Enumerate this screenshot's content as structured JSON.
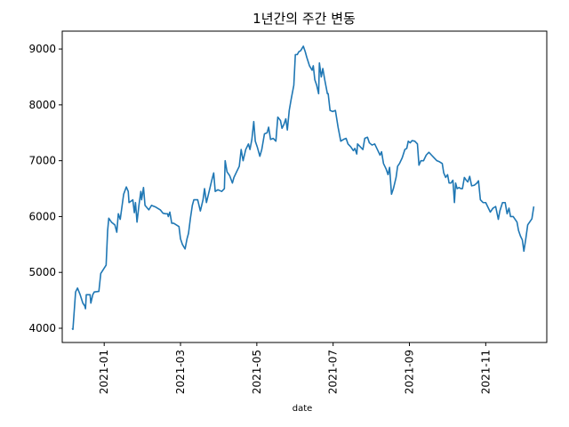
{
  "chart_data": {
    "type": "line",
    "title": "1년간의 주간 변동",
    "x_label": "date",
    "color": "#1f77b4",
    "x": [
      -0.84,
      -0.82,
      -0.75,
      -0.7,
      -0.63,
      -0.56,
      -0.51,
      -0.49,
      -0.47,
      -0.37,
      -0.35,
      -0.3,
      -0.26,
      -0.14,
      -0.09,
      0.05,
      0.09,
      0.12,
      0.19,
      0.28,
      0.33,
      0.37,
      0.42,
      0.51,
      0.58,
      0.63,
      0.65,
      0.75,
      0.79,
      0.82,
      0.86,
      0.91,
      0.96,
      0.98,
      1.03,
      1.07,
      1.17,
      1.24,
      1.35,
      1.47,
      1.54,
      1.61,
      1.66,
      1.68,
      1.72,
      1.77,
      1.82,
      1.89,
      1.96,
      2.0,
      2.05,
      2.12,
      2.17,
      2.21,
      2.26,
      2.31,
      2.35,
      2.45,
      2.52,
      2.59,
      2.63,
      2.68,
      2.75,
      2.82,
      2.87,
      2.91,
      2.98,
      3.08,
      3.15,
      3.17,
      3.22,
      3.29,
      3.36,
      3.4,
      3.47,
      3.54,
      3.59,
      3.64,
      3.71,
      3.78,
      3.82,
      3.87,
      3.92,
      3.96,
      4.01,
      4.08,
      4.13,
      4.2,
      4.27,
      4.31,
      4.36,
      4.43,
      4.5,
      4.55,
      4.62,
      4.66,
      4.71,
      4.76,
      4.8,
      4.85,
      4.9,
      4.97,
      5.01,
      5.06,
      5.1,
      5.15,
      5.22,
      5.27,
      5.31,
      5.38,
      5.45,
      5.48,
      5.52,
      5.57,
      5.62,
      5.64,
      5.69,
      5.73,
      5.78,
      5.85,
      5.87,
      5.92,
      5.99,
      6.06,
      6.13,
      6.2,
      6.27,
      6.34,
      6.39,
      6.46,
      6.53,
      6.57,
      6.62,
      6.64,
      6.71,
      6.78,
      6.83,
      6.9,
      6.95,
      7.02,
      7.09,
      7.16,
      7.23,
      7.27,
      7.32,
      7.39,
      7.44,
      7.48,
      7.53,
      7.58,
      7.65,
      7.69,
      7.74,
      7.81,
      7.88,
      7.93,
      7.97,
      8.02,
      8.07,
      8.14,
      8.21,
      8.25,
      8.3,
      8.37,
      8.44,
      8.51,
      8.58,
      8.65,
      8.72,
      8.79,
      8.86,
      8.9,
      8.95,
      9.0,
      9.04,
      9.09,
      9.14,
      9.18,
      9.21,
      9.25,
      9.3,
      9.35,
      9.39,
      9.44,
      9.49,
      9.53,
      9.58,
      9.63,
      9.7,
      9.77,
      9.81,
      9.86,
      9.93,
      10.0,
      10.07,
      10.12,
      10.19,
      10.26,
      10.33,
      10.37,
      10.44,
      10.51,
      10.56,
      10.61,
      10.65,
      10.72,
      10.77,
      10.82,
      10.86,
      10.91,
      10.96,
      11.0,
      11.05,
      11.1,
      11.17,
      11.21,
      11.26
    ],
    "values": [
      4000,
      3980,
      4650,
      4720,
      4600,
      4450,
      4400,
      4350,
      4600,
      4600,
      4450,
      4600,
      4650,
      4660,
      4980,
      5130,
      5750,
      5970,
      5900,
      5850,
      5720,
      6050,
      5950,
      6400,
      6530,
      6450,
      6250,
      6300,
      6070,
      6250,
      5900,
      6200,
      6450,
      6300,
      6520,
      6200,
      6120,
      6200,
      6170,
      6120,
      6060,
      6050,
      6050,
      6000,
      6080,
      5880,
      5880,
      5850,
      5820,
      5600,
      5500,
      5420,
      5600,
      5700,
      5970,
      6200,
      6300,
      6300,
      6100,
      6300,
      6500,
      6250,
      6450,
      6650,
      6780,
      6450,
      6480,
      6450,
      6500,
      7000,
      6800,
      6730,
      6600,
      6700,
      6800,
      6900,
      7200,
      7000,
      7200,
      7300,
      7200,
      7380,
      7700,
      7350,
      7250,
      7080,
      7200,
      7480,
      7500,
      7600,
      7380,
      7400,
      7350,
      7780,
      7720,
      7580,
      7650,
      7750,
      7550,
      7900,
      8100,
      8350,
      8900,
      8900,
      8950,
      8970,
      9050,
      8950,
      8850,
      8700,
      8620,
      8700,
      8450,
      8350,
      8200,
      8750,
      8500,
      8650,
      8450,
      8200,
      8200,
      7900,
      7880,
      7900,
      7600,
      7350,
      7380,
      7400,
      7300,
      7250,
      7180,
      7220,
      7120,
      7300,
      7250,
      7200,
      7400,
      7420,
      7320,
      7280,
      7300,
      7200,
      7100,
      7160,
      6950,
      6850,
      6750,
      6880,
      6400,
      6500,
      6700,
      6900,
      6950,
      7050,
      7200,
      7220,
      7350,
      7320,
      7360,
      7350,
      7300,
      6920,
      7000,
      7000,
      7100,
      7150,
      7100,
      7050,
      7000,
      6980,
      6950,
      6780,
      6700,
      6750,
      6600,
      6600,
      6650,
      6250,
      6600,
      6500,
      6520,
      6500,
      6500,
      6700,
      6650,
      6620,
      6720,
      6550,
      6560,
      6600,
      6640,
      6300,
      6250,
      6250,
      6150,
      6080,
      6150,
      6180,
      5950,
      6100,
      6250,
      6250,
      6050,
      6150,
      6000,
      6000,
      5950,
      5900,
      5750,
      5650,
      5580,
      5380,
      5600,
      5850,
      5920,
      5960,
      6180
    ],
    "xlim": [
      -1.1,
      11.6
    ],
    "xticks": [
      {
        "value": 0,
        "label": "2021-01"
      },
      {
        "value": 2,
        "label": "2021-03"
      },
      {
        "value": 4,
        "label": "2021-05"
      },
      {
        "value": 6,
        "label": "2021-07"
      },
      {
        "value": 8,
        "label": "2021-09"
      },
      {
        "value": 10,
        "label": "2021-11"
      }
    ],
    "ylim": [
      3745,
      9320
    ],
    "yticks": [
      4000,
      5000,
      6000,
      7000,
      8000,
      9000
    ]
  }
}
